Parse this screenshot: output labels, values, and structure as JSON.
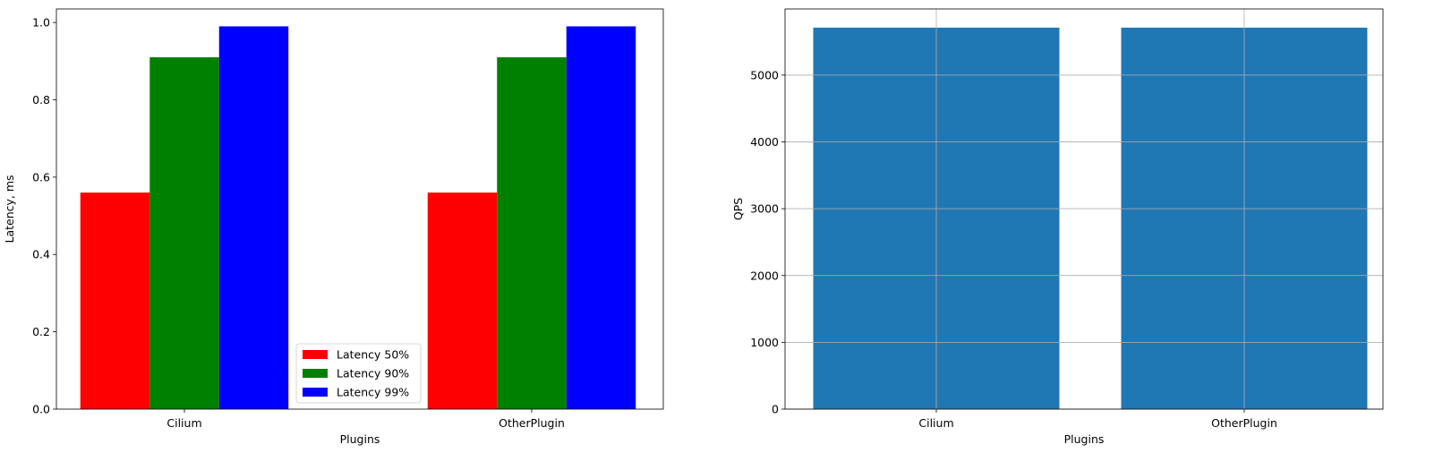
{
  "chart_data": [
    {
      "type": "bar",
      "title": "",
      "xlabel": "Plugins",
      "ylabel": "Latency, ms",
      "categories": [
        "Cilium",
        "OtherPlugin"
      ],
      "series": [
        {
          "name": "Latency 50%",
          "values": [
            0.56,
            0.56
          ],
          "color": "#ff0000"
        },
        {
          "name": "Latency 90%",
          "values": [
            0.91,
            0.91
          ],
          "color": "#008000"
        },
        {
          "name": "Latency 99%",
          "values": [
            0.99,
            0.99
          ],
          "color": "#0000ff"
        }
      ],
      "ylim": [
        0,
        1.035
      ],
      "yticks": [
        "0.0",
        "0.2",
        "0.4",
        "0.6",
        "0.8",
        "1.0"
      ],
      "grid": false,
      "legend_position": "lower-center"
    },
    {
      "type": "bar",
      "title": "",
      "xlabel": "Plugins",
      "ylabel": "QPS",
      "categories": [
        "Cilium",
        "OtherPlugin"
      ],
      "values": [
        5710,
        5710
      ],
      "color": "#1f77b4",
      "ylim": [
        0,
        5990
      ],
      "yticks": [
        "0",
        "1000",
        "2000",
        "3000",
        "4000",
        "5000"
      ],
      "grid": true
    }
  ]
}
